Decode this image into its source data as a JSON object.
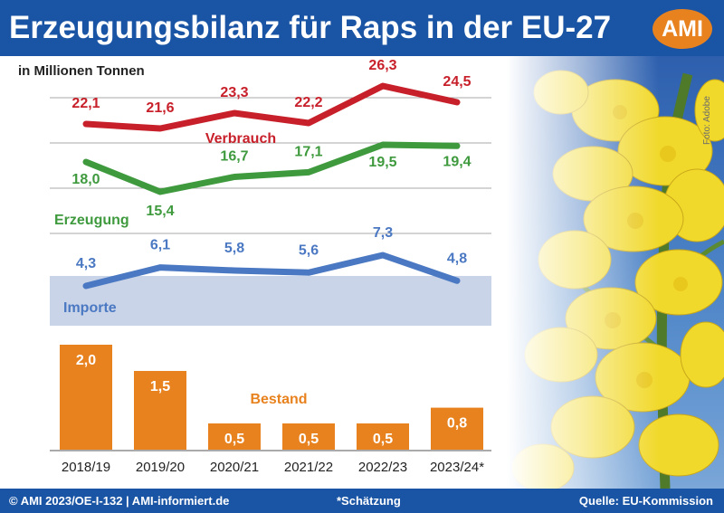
{
  "header": {
    "title": "Erzeugungsbilanz für Raps in der EU-27",
    "logo": "AMI"
  },
  "unit": "in Millionen Tonnen",
  "photo_credit": "Foto: Adobe",
  "footer": {
    "left": "© AMI 2023/OE-I-132 | AMI-informiert.de",
    "center": "*Schätzung",
    "right": "Quelle: EU-Kommission"
  },
  "colors": {
    "header": "#1a54a4",
    "accent": "#e8821f",
    "verbrauch": "#c8202a",
    "erzeugung": "#3f9a3e",
    "importe": "#4a78c2",
    "bestand": "#e8821f"
  },
  "chart_data": {
    "type": "line",
    "categories": [
      "2018/19",
      "2019/20",
      "2020/21",
      "2021/22",
      "2022/23",
      "2023/24*"
    ],
    "series": [
      {
        "name": "Verbrauch",
        "values": [
          22.1,
          21.6,
          23.3,
          22.2,
          26.3,
          24.5
        ],
        "labels": [
          "22,1",
          "21,6",
          "23,3",
          "22,2",
          "26,3",
          "24,5"
        ]
      },
      {
        "name": "Erzeugung",
        "values": [
          18.0,
          15.4,
          16.7,
          17.1,
          19.5,
          19.4
        ],
        "labels": [
          "18,0",
          "15,4",
          "16,7",
          "17,1",
          "19,5",
          "19,4"
        ]
      },
      {
        "name": "Importe",
        "values": [
          4.3,
          6.1,
          5.8,
          5.6,
          7.3,
          4.8
        ],
        "labels": [
          "4,3",
          "6,1",
          "5,8",
          "5,6",
          "7,3",
          "4,8"
        ]
      }
    ],
    "bar_series": {
      "name": "Bestand",
      "type": "bar",
      "values": [
        2.0,
        1.5,
        0.5,
        0.5,
        0.5,
        0.8
      ],
      "labels": [
        "2,0",
        "1,5",
        "0,5",
        "0,5",
        "0,5",
        "0,8"
      ]
    },
    "ylabel": "in Millionen Tonnen",
    "grid": true
  }
}
